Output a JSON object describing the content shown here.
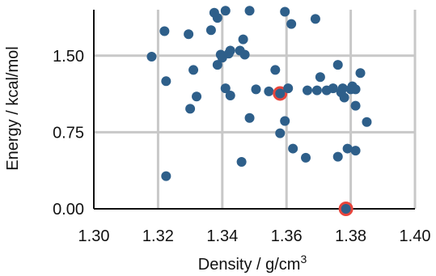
{
  "chart_data": {
    "type": "scatter",
    "xlabel": "Density / g/cm",
    "xlabel_superscript": "3",
    "ylabel": "Energy / kcal/mol",
    "xlim": [
      1.3,
      1.4
    ],
    "ylim": [
      0.0,
      1.95
    ],
    "x_ticks": [
      1.3,
      1.32,
      1.34,
      1.36,
      1.38,
      1.4
    ],
    "x_tick_labels": [
      "1.30",
      "1.32",
      "1.34",
      "1.36",
      "1.38",
      "1.40"
    ],
    "y_ticks": [
      0.0,
      0.75,
      1.5
    ],
    "y_tick_labels": [
      "0.00",
      "0.75",
      "1.50"
    ],
    "grid": true,
    "colors": {
      "point": "#2e5f8a",
      "highlight_ring": "#e8453c",
      "grid": "#c8c8c8",
      "axis": "#111111"
    },
    "series": [
      {
        "points": [
          {
            "x": 1.318,
            "y": 1.49
          },
          {
            "x": 1.322,
            "y": 1.74
          },
          {
            "x": 1.3225,
            "y": 1.25
          },
          {
            "x": 1.3225,
            "y": 0.32
          },
          {
            "x": 1.3295,
            "y": 1.71
          },
          {
            "x": 1.33,
            "y": 0.98
          },
          {
            "x": 1.331,
            "y": 1.36
          },
          {
            "x": 1.332,
            "y": 1.1
          },
          {
            "x": 1.3365,
            "y": 1.75
          },
          {
            "x": 1.3375,
            "y": 1.92
          },
          {
            "x": 1.3385,
            "y": 1.87
          },
          {
            "x": 1.3385,
            "y": 1.41
          },
          {
            "x": 1.3395,
            "y": 1.51
          },
          {
            "x": 1.34,
            "y": 1.48
          },
          {
            "x": 1.341,
            "y": 1.94
          },
          {
            "x": 1.341,
            "y": 1.18
          },
          {
            "x": 1.342,
            "y": 1.52
          },
          {
            "x": 1.3425,
            "y": 1.55
          },
          {
            "x": 1.3425,
            "y": 1.11
          },
          {
            "x": 1.3455,
            "y": 1.55
          },
          {
            "x": 1.346,
            "y": 0.46
          },
          {
            "x": 1.347,
            "y": 1.51
          },
          {
            "x": 1.3465,
            "y": 1.66
          },
          {
            "x": 1.3485,
            "y": 1.94
          },
          {
            "x": 1.3485,
            "y": 0.89
          },
          {
            "x": 1.3505,
            "y": 1.17
          },
          {
            "x": 1.3545,
            "y": 1.15
          },
          {
            "x": 1.3565,
            "y": 1.36
          },
          {
            "x": 1.358,
            "y": 1.13,
            "highlight": true
          },
          {
            "x": 1.358,
            "y": 0.74
          },
          {
            "x": 1.3595,
            "y": 0.86
          },
          {
            "x": 1.3595,
            "y": 1.93
          },
          {
            "x": 1.3605,
            "y": 1.18
          },
          {
            "x": 1.3615,
            "y": 1.81
          },
          {
            "x": 1.362,
            "y": 0.59
          },
          {
            "x": 1.366,
            "y": 0.5
          },
          {
            "x": 1.3665,
            "y": 1.16
          },
          {
            "x": 1.369,
            "y": 1.86
          },
          {
            "x": 1.3695,
            "y": 1.16
          },
          {
            "x": 1.3705,
            "y": 1.29
          },
          {
            "x": 1.3725,
            "y": 1.16
          },
          {
            "x": 1.3745,
            "y": 1.18
          },
          {
            "x": 1.376,
            "y": 1.41
          },
          {
            "x": 1.376,
            "y": 0.51
          },
          {
            "x": 1.377,
            "y": 1.14
          },
          {
            "x": 1.3775,
            "y": 1.18
          },
          {
            "x": 1.378,
            "y": 1.09
          },
          {
            "x": 1.379,
            "y": 0.59
          },
          {
            "x": 1.38,
            "y": 1.17
          },
          {
            "x": 1.3805,
            "y": 1.2
          },
          {
            "x": 1.3815,
            "y": 1.01
          },
          {
            "x": 1.3815,
            "y": 1.17
          },
          {
            "x": 1.3815,
            "y": 0.57
          },
          {
            "x": 1.383,
            "y": 1.33
          },
          {
            "x": 1.385,
            "y": 0.85
          },
          {
            "x": 1.3785,
            "y": 0.0,
            "highlight": true
          }
        ]
      }
    ]
  }
}
